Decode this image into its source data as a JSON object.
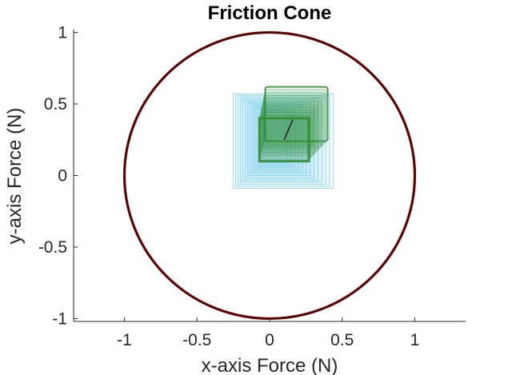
{
  "chart_data": {
    "type": "scatter",
    "title": "Friction Cone",
    "xlabel": "x-axis Force (N)",
    "ylabel": "y-axis Force (N)",
    "xlim": [
      -1.35,
      1.35
    ],
    "ylim": [
      -1.02,
      1.02
    ],
    "x_ticks": [
      -1,
      -0.5,
      0,
      0.5,
      1
    ],
    "x_tick_labels": [
      "-1",
      "-0.5",
      "0",
      "0.5",
      "1"
    ],
    "y_ticks": [
      -1,
      -0.5,
      0,
      0.5,
      1
    ],
    "y_tick_labels": [
      "-1",
      "-0.5",
      "0",
      "0.5",
      "1"
    ],
    "grid": false,
    "friction_circle": {
      "center": [
        0,
        0
      ],
      "radius": 1.0,
      "color": "#8b0000",
      "inner_color": "#000000"
    },
    "blue_squares": {
      "color": "#5bc8e8",
      "count": 13,
      "outer": {
        "x_min": -0.25,
        "x_max": 0.44,
        "y_min": -0.09,
        "y_max": 0.57
      },
      "inner": {
        "x_min": -0.05,
        "x_max": 0.12,
        "y_min": 0.09,
        "y_max": 0.45
      }
    },
    "green_box": {
      "color": "#2e8b2e",
      "back_face": {
        "x_min": -0.03,
        "x_max": 0.4,
        "y_min": 0.24,
        "y_max": 0.62
      },
      "front_face": {
        "x_min": -0.07,
        "x_max": 0.27,
        "y_min": 0.1,
        "y_max": 0.4
      },
      "layers": 12
    },
    "force_vector": {
      "start": [
        0.1,
        0.25
      ],
      "end": [
        0.16,
        0.39
      ],
      "color": "#000000"
    }
  }
}
